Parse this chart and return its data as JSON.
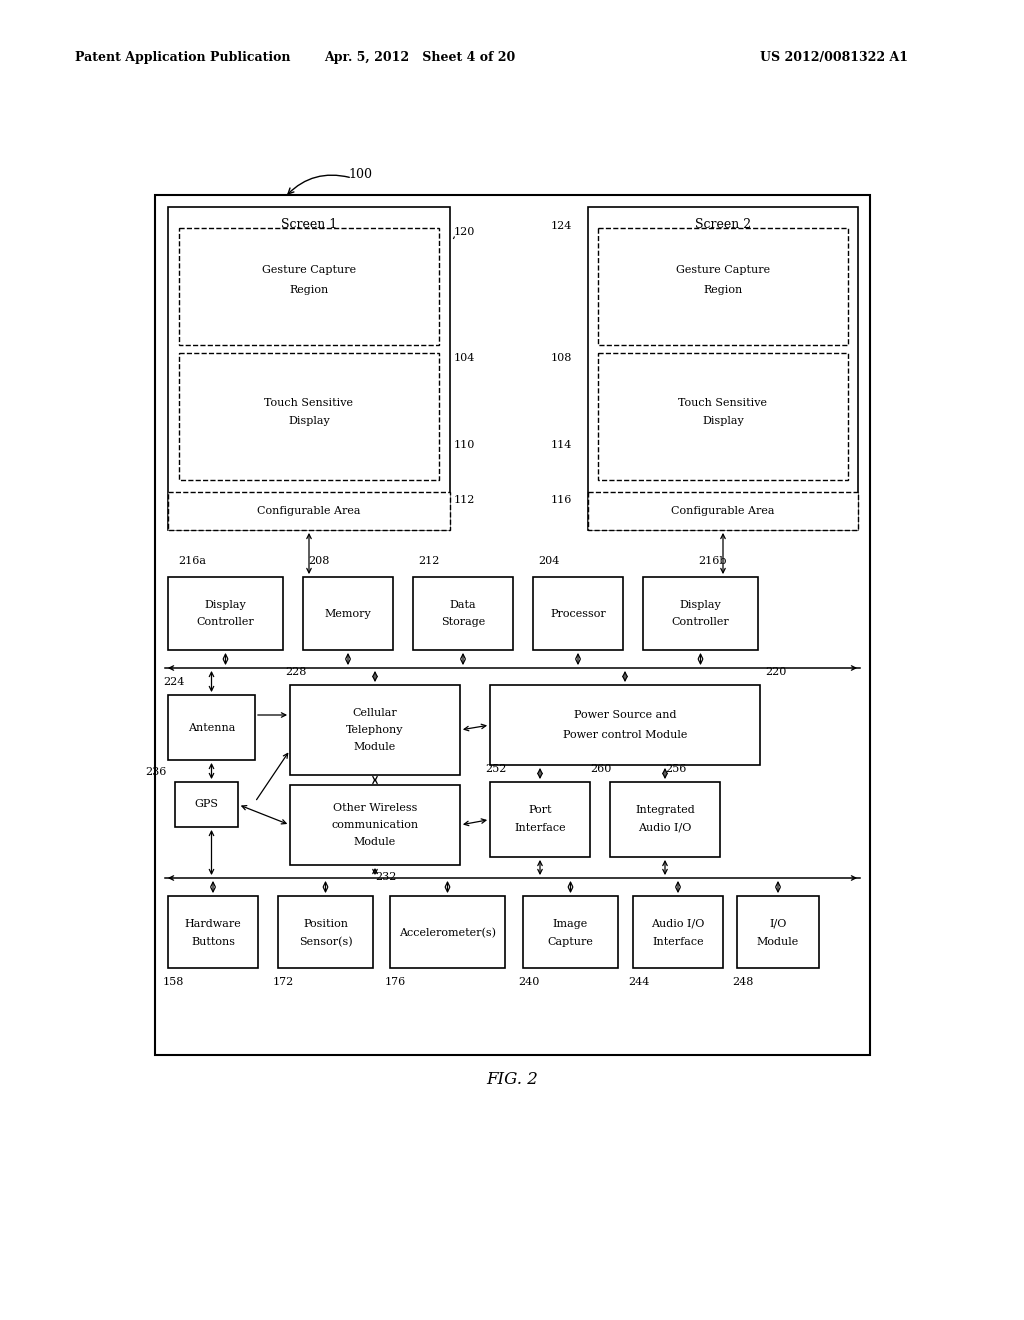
{
  "bg_color": "#ffffff",
  "header_left": "Patent Application Publication",
  "header_center": "Apr. 5, 2012   Sheet 4 of 20",
  "header_right": "US 2012/0081322 A1",
  "fig_title": "FIG. 2"
}
